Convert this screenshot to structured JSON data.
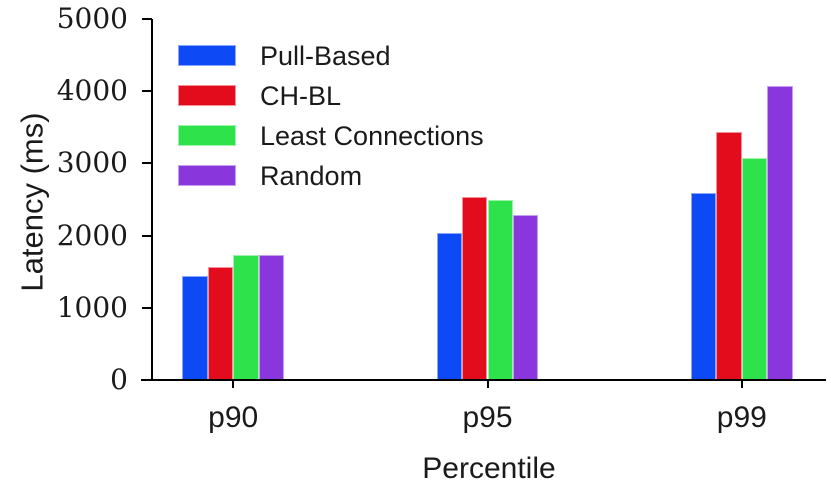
{
  "chart_data": {
    "type": "bar",
    "title": "",
    "xlabel": "Percentile",
    "ylabel": "Latency (ms)",
    "categories": [
      "p90",
      "p95",
      "p99"
    ],
    "series": [
      {
        "name": "Pull-Based",
        "color": "#0d49f5",
        "edge_color": "#8aa7fa",
        "values": [
          1440,
          2040,
          2585
        ]
      },
      {
        "name": "CH-BL",
        "color": "#e30c1d",
        "edge_color": "#f29199",
        "values": [
          1565,
          2540,
          3430
        ]
      },
      {
        "name": "Least Connections",
        "color": "#2de24b",
        "edge_color": "#9cf1ab",
        "values": [
          1730,
          2495,
          3070
        ]
      },
      {
        "name": "Random",
        "color": "#8937dc",
        "edge_color": "#c6a0ee",
        "values": [
          1735,
          2285,
          4070
        ]
      }
    ],
    "ylim": [
      0,
      5000
    ],
    "yticks": [
      0,
      1000,
      2000,
      3000,
      4000,
      5000
    ],
    "grid": false,
    "legend_position": "upper-left",
    "axis_color": "#000000",
    "text_color": "#1a1a1a",
    "background_color": "#ffffff"
  }
}
